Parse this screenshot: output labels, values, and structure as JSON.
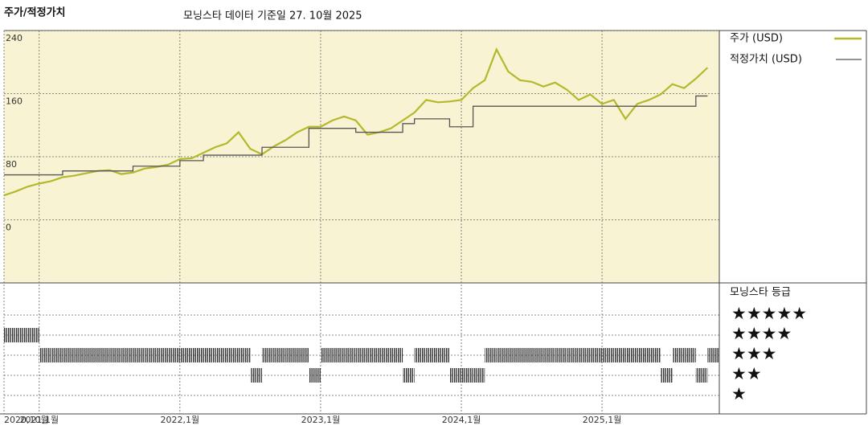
{
  "header": {
    "label": "주가/적정가치",
    "title": "모닝스타 데이터 기준일 27. 10월 2025"
  },
  "chart_data": [
    {
      "type": "line",
      "x": [
        "2020-10",
        "2020-11",
        "2020-12",
        "2021-01",
        "2021-02",
        "2021-03",
        "2021-04",
        "2021-05",
        "2021-06",
        "2021-07",
        "2021-08",
        "2021-09",
        "2021-10",
        "2021-11",
        "2021-12",
        "2022-01",
        "2022-02",
        "2022-03",
        "2022-04",
        "2022-05",
        "2022-06",
        "2022-07",
        "2022-08",
        "2022-09",
        "2022-10",
        "2022-11",
        "2022-12",
        "2023-01",
        "2023-02",
        "2023-03",
        "2023-04",
        "2023-05",
        "2023-06",
        "2023-07",
        "2023-08",
        "2023-09",
        "2023-10",
        "2023-11",
        "2023-12",
        "2024-01",
        "2024-02",
        "2024-03",
        "2024-04",
        "2024-05",
        "2024-06",
        "2024-07",
        "2024-08",
        "2024-09",
        "2024-10",
        "2024-11",
        "2024-12",
        "2025-01",
        "2025-02",
        "2025-03",
        "2025-04",
        "2025-05",
        "2025-06",
        "2025-07",
        "2025-08",
        "2025-09",
        "2025-10"
      ],
      "series": [
        {
          "name": "주가 (USD)",
          "color": "#b4b82c",
          "values": [
            31,
            36,
            42,
            46,
            49,
            54,
            56,
            59,
            62,
            63,
            58,
            60,
            65,
            67,
            70,
            77,
            78,
            85,
            92,
            97,
            111,
            90,
            83,
            93,
            101,
            111,
            118,
            118,
            126,
            131,
            126,
            108,
            111,
            116,
            126,
            136,
            152,
            149,
            150,
            152,
            167,
            177,
            216,
            188,
            177,
            175,
            169,
            174,
            165,
            152,
            159,
            147,
            152,
            128,
            147,
            152,
            159,
            172,
            167,
            179,
            193
          ]
        },
        {
          "name": "적정가치 (USD)",
          "color": "#555555",
          "step": true,
          "values": [
            57,
            57,
            57,
            57,
            57,
            62,
            62,
            62,
            62,
            62,
            62,
            68,
            68,
            68,
            68,
            75,
            75,
            82,
            82,
            82,
            82,
            82,
            92,
            92,
            92,
            92,
            116,
            116,
            116,
            116,
            111,
            111,
            111,
            111,
            122,
            128,
            128,
            128,
            118,
            118,
            144,
            144,
            144,
            144,
            144,
            144,
            144,
            144,
            144,
            144,
            144,
            144,
            144,
            144,
            144,
            144,
            144,
            144,
            144,
            157,
            157
          ]
        }
      ],
      "xlim": [
        "2020-10",
        "2025-11"
      ],
      "xticks": [
        {
          "value": "2020-10",
          "label": "2020,10월"
        },
        {
          "value": "2021-01",
          "label": "2021,1월"
        },
        {
          "value": "2022-01",
          "label": "2022,1월"
        },
        {
          "value": "2023-01",
          "label": "2023,1월"
        },
        {
          "value": "2024-01",
          "label": "2024,1월"
        },
        {
          "value": "2025-01",
          "label": "2025,1월"
        }
      ],
      "ylim": [
        -80,
        240
      ],
      "yticks": [
        0,
        80,
        160,
        240
      ],
      "grid": true,
      "background": "#f8f4d3"
    },
    {
      "type": "rating",
      "title": "모닝스타 등급",
      "ratings": [
        4,
        4,
        4,
        3,
        3,
        3,
        3,
        3,
        3,
        3,
        3,
        3,
        3,
        3,
        3,
        3,
        3,
        3,
        3,
        3,
        3,
        2,
        3,
        3,
        3,
        3,
        2,
        3,
        3,
        3,
        3,
        3,
        3,
        3,
        2,
        3,
        3,
        3,
        2,
        2,
        2,
        3,
        3,
        3,
        3,
        3,
        3,
        3,
        3,
        3,
        3,
        3,
        3,
        3,
        3,
        3,
        2,
        3,
        3,
        2,
        3
      ],
      "levels": [
        {
          "value": 5,
          "label": "★★★★★"
        },
        {
          "value": 4,
          "label": "★★★★"
        },
        {
          "value": 3,
          "label": "★★★"
        },
        {
          "value": 2,
          "label": "★★"
        },
        {
          "value": 1,
          "label": "★"
        }
      ],
      "color": "#333333"
    }
  ]
}
